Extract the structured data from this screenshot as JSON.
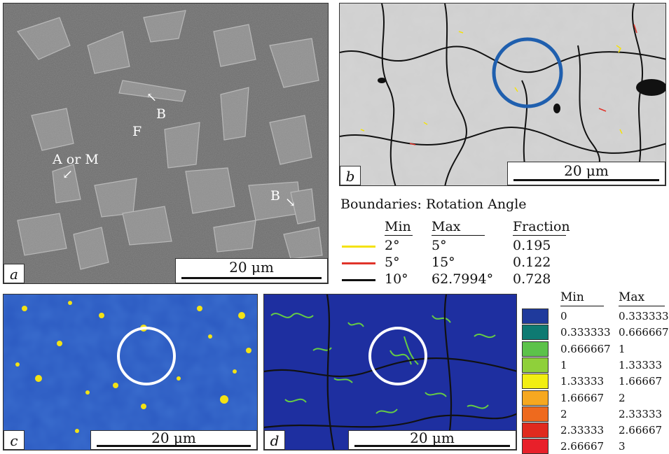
{
  "panels": {
    "a": {
      "label": "a",
      "scale": "20 μm",
      "annotations": {
        "b1": "B",
        "f": "F",
        "aom": "A or M",
        "b2": "B"
      }
    },
    "b": {
      "label": "b",
      "scale": "20 μm"
    },
    "c": {
      "label": "c",
      "scale": "20 μm"
    },
    "d": {
      "label": "d",
      "scale": "20 μm"
    }
  },
  "boundary_legend": {
    "title": "Boundaries: Rotation Angle",
    "headers": {
      "min": "Min",
      "max": "Max",
      "fraction": "Fraction"
    },
    "rows": [
      {
        "color": "#f4e20c",
        "min": "2°",
        "max": "5°",
        "fraction": "0.195"
      },
      {
        "color": "#e0342a",
        "min": "5°",
        "max": "15°",
        "fraction": "0.122"
      },
      {
        "color": "#111111",
        "min": "10°",
        "max": "62.7994°",
        "fraction": "0.728"
      }
    ]
  },
  "colormap_legend": {
    "headers": {
      "min": "Min",
      "max": "Max"
    },
    "rows": [
      {
        "color": "#1f3a9c",
        "min": "0",
        "max": "0.333333"
      },
      {
        "color": "#0e7a72",
        "min": "0.333333",
        "max": "0.666667"
      },
      {
        "color": "#5cc24a",
        "min": "0.666667",
        "max": "1"
      },
      {
        "color": "#8fd03a",
        "min": "1",
        "max": "1.33333"
      },
      {
        "color": "#f2ee12",
        "min": "1.33333",
        "max": "1.66667"
      },
      {
        "color": "#f6a820",
        "min": "1.66667",
        "max": "2"
      },
      {
        "color": "#ee6a1e",
        "min": "2",
        "max": "2.33333"
      },
      {
        "color": "#e02a1e",
        "min": "2.33333",
        "max": "2.66667"
      },
      {
        "color": "#e8202a",
        "min": "2.66667",
        "max": "3"
      }
    ]
  }
}
